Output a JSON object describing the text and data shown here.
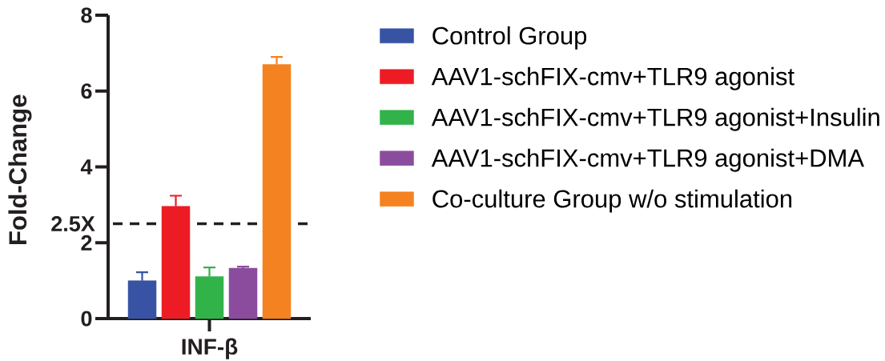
{
  "chart_data": {
    "type": "bar",
    "ylabel": "Fold-Change",
    "categories": [
      "INF-β"
    ],
    "series": [
      {
        "name": "Control Group",
        "color": "#3953a4",
        "values": [
          1.0
        ],
        "errors": [
          [
            1.0,
            1.22
          ]
        ]
      },
      {
        "name": "AAV1-schFIX-cmv+TLR9 agonist",
        "color": "#ed1c24",
        "values": [
          2.96
        ],
        "errors": [
          [
            2.96,
            3.24
          ]
        ]
      },
      {
        "name": "AAV1-schFIX-cmv+TLR9 agonist+Insulin",
        "color": "#32b34a",
        "values": [
          1.11
        ],
        "errors": [
          [
            1.11,
            1.35
          ]
        ]
      },
      {
        "name": "AAV1-schFIX-cmv+TLR9 agonist+DMA",
        "color": "#8b4c9e",
        "values": [
          1.33
        ],
        "errors": [
          [
            1.33,
            1.37
          ]
        ]
      },
      {
        "name": "Co-culture Group w/o stimulation",
        "color": "#f58220",
        "values": [
          6.7
        ],
        "errors": [
          [
            6.7,
            6.9
          ]
        ]
      }
    ],
    "ylim": [
      0,
      8
    ],
    "yticks": [
      0,
      2,
      4,
      6,
      8
    ],
    "ref_lines": [
      {
        "axis": "y",
        "value": 2.5,
        "label": "2.5X",
        "line_style": "dashed",
        "color": "#231f20"
      }
    ],
    "legend": "right"
  }
}
